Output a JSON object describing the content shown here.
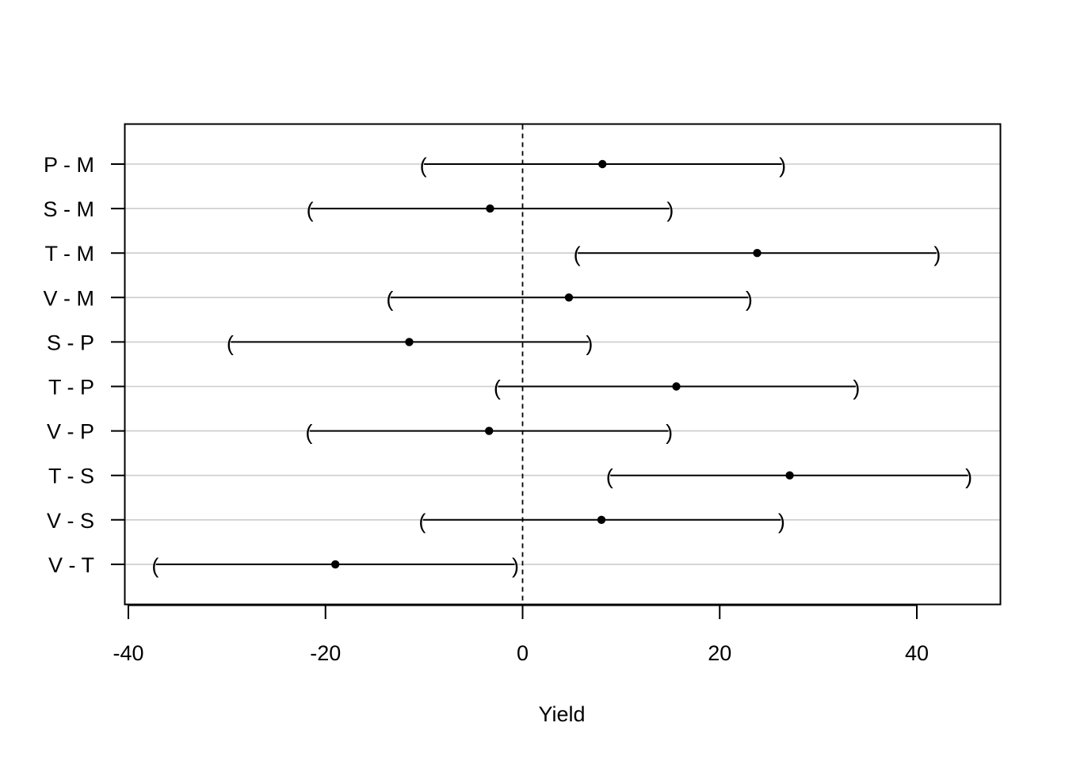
{
  "chart_data": {
    "type": "interval",
    "xlabel": "Yield",
    "xlim": [
      -40,
      48
    ],
    "xticks": [
      -40,
      -20,
      0,
      20,
      40
    ],
    "xtick_labels": [
      "-40",
      "-20",
      "0",
      "20",
      "40"
    ],
    "reference_line": 0,
    "grid": true,
    "comparisons": [
      {
        "label": "P - M",
        "lower": -10.0,
        "estimate": 8.1,
        "upper": 26.3
      },
      {
        "label": "S - M",
        "lower": -21.5,
        "estimate": -3.3,
        "upper": 14.9
      },
      {
        "label": "T - M",
        "lower": 5.6,
        "estimate": 23.8,
        "upper": 42.0
      },
      {
        "label": "V - M",
        "lower": -13.4,
        "estimate": 4.7,
        "upper": 22.9
      },
      {
        "label": "S - P",
        "lower": -29.6,
        "estimate": -11.5,
        "upper": 6.7
      },
      {
        "label": "T - P",
        "lower": -2.5,
        "estimate": 15.6,
        "upper": 33.8
      },
      {
        "label": "V - P",
        "lower": -21.6,
        "estimate": -3.4,
        "upper": 14.8
      },
      {
        "label": "T - S",
        "lower": 8.9,
        "estimate": 27.1,
        "upper": 45.2
      },
      {
        "label": "V - S",
        "lower": -10.1,
        "estimate": 8.0,
        "upper": 26.2
      },
      {
        "label": "V - T",
        "lower": -37.2,
        "estimate": -19.0,
        "upper": -0.8
      }
    ]
  }
}
